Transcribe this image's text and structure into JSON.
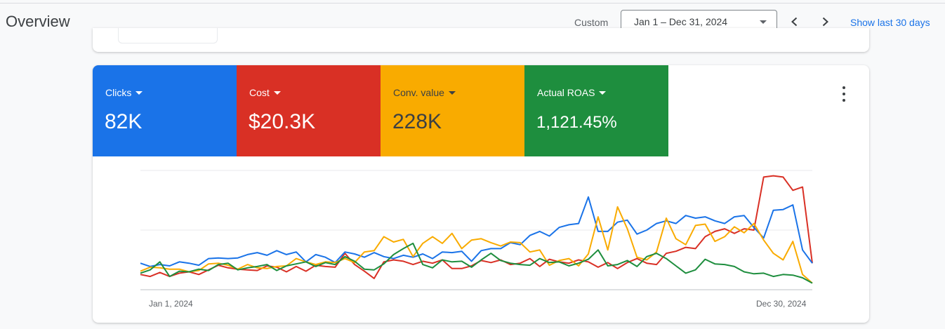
{
  "header": {
    "title": "Overview",
    "range_type": "Custom",
    "date_range": "Jan 1 – Dec 31, 2024",
    "show_last": "Show last 30 days"
  },
  "colors": {
    "clicks": "#1a73e8",
    "cost": "#d93025",
    "conv_value": "#f9ab00",
    "roas": "#1e8e3e"
  },
  "metrics": [
    {
      "label": "Clicks",
      "value": "82K"
    },
    {
      "label": "Cost",
      "value": "$20.3K"
    },
    {
      "label": "Conv. value",
      "value": "228K"
    },
    {
      "label": "Actual ROAS",
      "value": "1,121.45%"
    }
  ],
  "chart_data": {
    "type": "line",
    "x_start_label": "Jan 1, 2024",
    "x_end_label": "Dec 30, 2024",
    "grid": true,
    "series": [
      {
        "name": "Clicks",
        "values": [
          40,
          35,
          38,
          36,
          42,
          40,
          37,
          47,
          48,
          47,
          48,
          53,
          56,
          52,
          59,
          53,
          57,
          42,
          53,
          49,
          41,
          57,
          54,
          49,
          56,
          50,
          47,
          52,
          49,
          54,
          47,
          57,
          56,
          58,
          43,
          59,
          62,
          62,
          71,
          68,
          82,
          88,
          81,
          94,
          98,
          100,
          140,
          88,
          88,
          102,
          105,
          84,
          90,
          100,
          104,
          100,
          112,
          108,
          110,
          104,
          100,
          110,
          112,
          94,
          78,
          120,
          121,
          128,
          60,
          40
        ]
      },
      {
        "name": "Cost",
        "values": [
          23,
          20,
          26,
          20,
          25,
          27,
          23,
          30,
          37,
          33,
          31,
          30,
          29,
          36,
          34,
          27,
          35,
          28,
          37,
          35,
          34,
          55,
          38,
          28,
          17,
          42,
          45,
          43,
          38,
          43,
          40,
          45,
          32,
          32,
          36,
          44,
          41,
          45,
          38,
          40,
          47,
          35,
          46,
          42,
          40,
          45,
          42,
          34,
          41,
          32,
          41,
          47,
          40,
          38,
          55,
          58,
          64,
          62,
          80,
          88,
          92,
          85,
          92,
          90,
          170,
          172,
          170,
          150,
          155,
          40
        ]
      },
      {
        "name": "Conv. value",
        "values": [
          28,
          34,
          33,
          31,
          31,
          27,
          29,
          39,
          40,
          37,
          31,
          38,
          33,
          32,
          35,
          36,
          47,
          42,
          38,
          42,
          41,
          47,
          41,
          57,
          59,
          80,
          72,
          76,
          50,
          70,
          80,
          70,
          85,
          62,
          75,
          77,
          71,
          66,
          72,
          71,
          57,
          60,
          37,
          44,
          47,
          36,
          54,
          110,
          60,
          125,
          92,
          49,
          45,
          57,
          108,
          77,
          68,
          97,
          99,
          73,
          80,
          95,
          86,
          100,
          75,
          55,
          45,
          73,
          23,
          10
        ]
      },
      {
        "name": "Actual ROAS",
        "values": [
          25,
          30,
          42,
          20,
          28,
          27,
          31,
          29,
          38,
          40,
          30,
          33,
          35,
          38,
          29,
          36,
          39,
          42,
          35,
          41,
          38,
          50,
          43,
          31,
          30,
          39,
          53,
          62,
          70,
          38,
          33,
          45,
          42,
          43,
          34,
          45,
          55,
          44,
          40,
          38,
          37,
          47,
          41,
          42,
          36,
          40,
          46,
          60,
          36,
          38,
          44,
          35,
          50,
          55,
          47,
          36,
          25,
          30,
          46,
          39,
          38,
          35,
          27,
          24,
          25,
          20,
          23,
          22,
          18,
          10
        ]
      }
    ],
    "ylim": [
      0,
      180
    ]
  }
}
